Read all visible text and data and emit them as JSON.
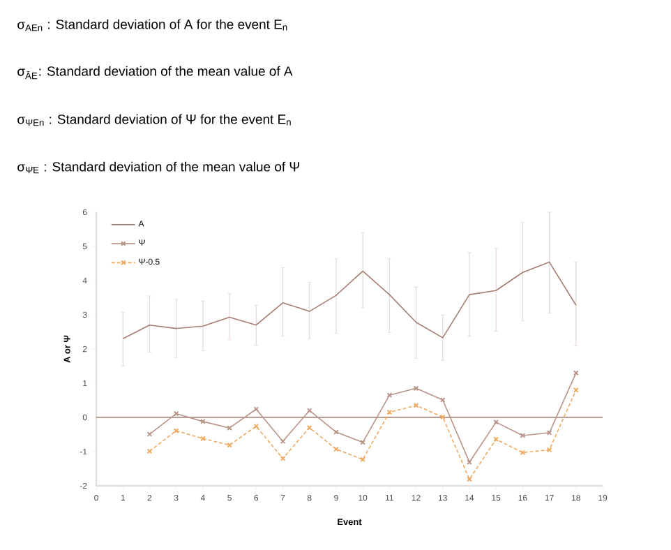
{
  "chart_data": {
    "type": "line",
    "annotations": [
      "σ$_{AEn}$ : Standard deviation of A for the event E$_{n}$",
      "σ$_{ĀE}$: Standard deviation of the mean value of A",
      "σ$_{ΨEn}$ : Standard deviation of Ψ for the event E$_{n}$",
      "σ$_{Ψ̄E}$ : Standard deviation of the mean value of Ψ"
    ],
    "xlabel": "Event",
    "ylabel": "A or Ψ",
    "x": [
      1,
      2,
      3,
      4,
      5,
      6,
      7,
      8,
      9,
      10,
      11,
      12,
      13,
      14,
      15,
      16,
      17,
      18
    ],
    "series": [
      {
        "name": "A",
        "color": "#a47e72",
        "line_style": "solid",
        "marker": "none",
        "values": [
          2.3,
          2.7,
          2.6,
          2.67,
          2.93,
          2.7,
          3.35,
          3.1,
          3.57,
          4.28,
          3.59,
          2.78,
          2.33,
          3.59,
          3.71,
          4.24,
          4.54,
          3.28
        ],
        "errors": [
          [
            1.5,
            3.08
          ],
          [
            1.9,
            3.55
          ],
          [
            1.75,
            3.45
          ],
          [
            1.95,
            3.4
          ],
          [
            2.27,
            3.62
          ],
          [
            2.1,
            3.28
          ],
          [
            2.37,
            4.38
          ],
          [
            2.3,
            3.95
          ],
          [
            2.46,
            4.64
          ],
          [
            3.2,
            5.41
          ],
          [
            2.48,
            4.64
          ],
          [
            1.73,
            3.81
          ],
          [
            1.67,
            2.99
          ],
          [
            2.37,
            4.82
          ],
          [
            2.52,
            4.94
          ],
          [
            2.82,
            5.7
          ],
          [
            3.05,
            6.0
          ],
          [
            2.09,
            4.55
          ]
        ]
      },
      {
        "name": "Ψ",
        "color": "#b89488",
        "line_style": "solid",
        "marker": "cross",
        "values": [
          null,
          -0.49,
          0.11,
          -0.12,
          -0.31,
          0.24,
          -0.7,
          0.2,
          -0.43,
          -0.73,
          0.65,
          0.85,
          0.51,
          -1.31,
          -0.14,
          -0.53,
          -0.45,
          1.3
        ]
      },
      {
        "name": "Ψ-0.5",
        "color": "#f0a860",
        "line_style": "dashed",
        "marker": "cross",
        "values": [
          null,
          -0.99,
          -0.39,
          -0.62,
          -0.81,
          -0.26,
          -1.2,
          -0.3,
          -0.93,
          -1.23,
          0.15,
          0.35,
          0.01,
          -1.81,
          -0.64,
          -1.03,
          -0.95,
          0.8
        ]
      }
    ],
    "xlim": [
      0,
      19
    ],
    "xticks": [
      0,
      1,
      2,
      3,
      4,
      5,
      6,
      7,
      8,
      9,
      10,
      11,
      12,
      13,
      14,
      15,
      16,
      17,
      18,
      19
    ],
    "ylim": [
      -2,
      6
    ],
    "yticks": [
      -2,
      -1,
      0,
      1,
      2,
      3,
      4,
      5,
      6
    ],
    "ref_lines": [
      {
        "axis": "y",
        "value": 0,
        "color": "#a47e72"
      }
    ],
    "grid": false,
    "legend": "top left"
  }
}
